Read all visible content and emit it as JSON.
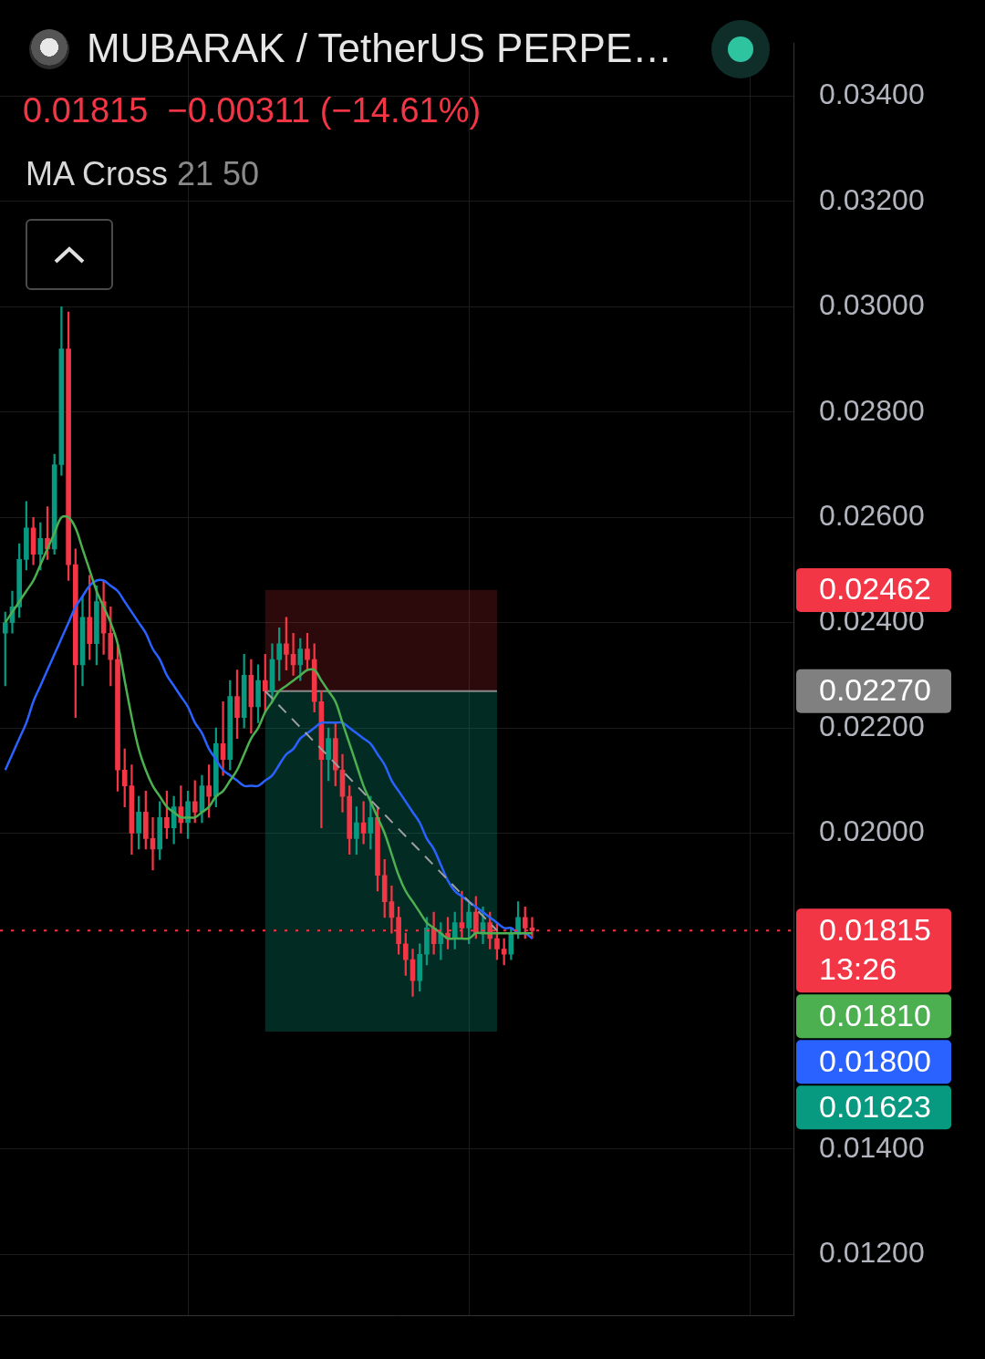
{
  "chart_data": {
    "type": "candlestick",
    "title": "MUBARAK / TetherUS PERPE…",
    "subtitle": "0.01815  −0.00311 (−14.61%)",
    "indicator": {
      "name": "MA Cross",
      "params": "21 50"
    },
    "x": [
      0,
      1,
      2,
      3,
      4,
      5,
      6,
      7,
      8,
      9,
      10,
      11,
      12,
      13,
      14,
      15,
      16,
      17,
      18,
      19,
      20,
      21,
      22,
      23,
      24,
      25,
      26,
      27,
      28,
      29,
      30,
      31,
      32,
      33,
      34,
      35,
      36,
      37,
      38,
      39,
      40,
      41,
      42,
      43,
      44,
      45,
      46,
      47,
      48,
      49,
      50,
      51,
      52,
      53,
      54,
      55,
      56,
      57,
      58,
      59,
      60,
      61,
      62,
      63,
      64,
      65,
      66,
      67,
      68,
      69,
      70,
      71,
      72,
      73,
      74,
      75
    ],
    "candles": {
      "up_color": "#089981",
      "down_color": "#f23645",
      "open": [
        0.0238,
        0.024,
        0.0243,
        0.0252,
        0.0258,
        0.0253,
        0.0256,
        0.0254,
        0.027,
        0.0292,
        0.0251,
        0.0232,
        0.0241,
        0.0236,
        0.0244,
        0.0238,
        0.0233,
        0.0212,
        0.0209,
        0.02,
        0.0204,
        0.0199,
        0.0197,
        0.0203,
        0.0201,
        0.0205,
        0.0202,
        0.0206,
        0.0204,
        0.0209,
        0.0207,
        0.0217,
        0.0214,
        0.0226,
        0.0222,
        0.023,
        0.0224,
        0.0229,
        0.0227,
        0.0233,
        0.0236,
        0.0234,
        0.0232,
        0.0235,
        0.0233,
        0.0225,
        0.0214,
        0.0218,
        0.0212,
        0.0207,
        0.0199,
        0.0202,
        0.02,
        0.0203,
        0.0192,
        0.0187,
        0.0184,
        0.0179,
        0.0176,
        0.0172,
        0.0177,
        0.0182,
        0.0179,
        0.0181,
        0.018,
        0.0183,
        0.0182,
        0.0185,
        0.0181,
        0.0183,
        0.018,
        0.0178,
        0.0177,
        0.0181,
        0.0184,
        0.0182
      ],
      "high": [
        0.0242,
        0.0246,
        0.0255,
        0.0263,
        0.026,
        0.0259,
        0.0262,
        0.0272,
        0.03,
        0.0299,
        0.0254,
        0.0245,
        0.0249,
        0.0247,
        0.0248,
        0.0243,
        0.0236,
        0.0216,
        0.0213,
        0.0207,
        0.0208,
        0.0203,
        0.0206,
        0.0208,
        0.0207,
        0.0209,
        0.0208,
        0.021,
        0.0211,
        0.0213,
        0.022,
        0.0225,
        0.0229,
        0.0231,
        0.0234,
        0.0233,
        0.0232,
        0.0234,
        0.0236,
        0.0239,
        0.0241,
        0.0238,
        0.0237,
        0.0238,
        0.0236,
        0.0227,
        0.022,
        0.0221,
        0.0215,
        0.0209,
        0.0205,
        0.0206,
        0.0207,
        0.0205,
        0.0195,
        0.019,
        0.0186,
        0.0181,
        0.0178,
        0.0179,
        0.0184,
        0.0185,
        0.0183,
        0.0184,
        0.0185,
        0.0189,
        0.0187,
        0.0188,
        0.0186,
        0.0185,
        0.0183,
        0.018,
        0.0182,
        0.0187,
        0.0186,
        0.0184
      ],
      "low": [
        0.0228,
        0.0238,
        0.0241,
        0.025,
        0.0251,
        0.025,
        0.0252,
        0.0253,
        0.0268,
        0.0248,
        0.0222,
        0.0228,
        0.0233,
        0.0232,
        0.0234,
        0.0228,
        0.0208,
        0.0205,
        0.0196,
        0.0197,
        0.0197,
        0.0193,
        0.0195,
        0.0199,
        0.0198,
        0.02,
        0.0199,
        0.0202,
        0.0202,
        0.0203,
        0.0205,
        0.0211,
        0.0212,
        0.0218,
        0.022,
        0.0219,
        0.0221,
        0.0223,
        0.0225,
        0.0229,
        0.0231,
        0.023,
        0.0229,
        0.0231,
        0.0223,
        0.0201,
        0.021,
        0.0209,
        0.0204,
        0.0196,
        0.0196,
        0.0198,
        0.0197,
        0.0189,
        0.0184,
        0.0181,
        0.0177,
        0.0173,
        0.0169,
        0.017,
        0.0175,
        0.0177,
        0.0176,
        0.0178,
        0.0178,
        0.018,
        0.0179,
        0.018,
        0.0179,
        0.0178,
        0.0176,
        0.0175,
        0.0176,
        0.018,
        0.018,
        0.018
      ],
      "close": [
        0.024,
        0.0243,
        0.0252,
        0.0258,
        0.0253,
        0.0256,
        0.0254,
        0.027,
        0.0292,
        0.0251,
        0.0232,
        0.0241,
        0.0236,
        0.0244,
        0.0238,
        0.0233,
        0.0212,
        0.0209,
        0.02,
        0.0204,
        0.0199,
        0.0197,
        0.0203,
        0.0201,
        0.0205,
        0.0202,
        0.0206,
        0.0204,
        0.0209,
        0.0207,
        0.0217,
        0.0214,
        0.0226,
        0.0222,
        0.023,
        0.0224,
        0.0229,
        0.0227,
        0.0233,
        0.0236,
        0.0234,
        0.0232,
        0.0235,
        0.0233,
        0.0225,
        0.0214,
        0.0218,
        0.0212,
        0.0207,
        0.0199,
        0.0202,
        0.02,
        0.0203,
        0.0192,
        0.0187,
        0.0184,
        0.0179,
        0.0176,
        0.0172,
        0.0177,
        0.0182,
        0.0179,
        0.0181,
        0.018,
        0.0183,
        0.0182,
        0.0185,
        0.0181,
        0.0183,
        0.018,
        0.0178,
        0.0177,
        0.0181,
        0.0184,
        0.0182,
        0.01815
      ]
    },
    "series": [
      {
        "type": "line",
        "color": "#4caf50",
        "line_style": "solid",
        "values": [
          0.024,
          0.0242,
          0.0244,
          0.0246,
          0.0248,
          0.0251,
          0.0254,
          0.0257,
          0.026,
          0.026,
          0.0258,
          0.0254,
          0.025,
          0.0246,
          0.0243,
          0.024,
          0.0236,
          0.0229,
          0.0222,
          0.0216,
          0.0212,
          0.0209,
          0.0207,
          0.0205,
          0.0204,
          0.0203,
          0.0203,
          0.0203,
          0.0204,
          0.0205,
          0.0207,
          0.0208,
          0.021,
          0.0212,
          0.0215,
          0.0218,
          0.022,
          0.0223,
          0.0225,
          0.0227,
          0.0228,
          0.0229,
          0.023,
          0.0231,
          0.0231,
          0.0229,
          0.0227,
          0.0225,
          0.0221,
          0.0217,
          0.0213,
          0.0209,
          0.0206,
          0.0203,
          0.02,
          0.0196,
          0.0192,
          0.0189,
          0.0187,
          0.0185,
          0.0183,
          0.0182,
          0.0181,
          0.018,
          0.018,
          0.018,
          0.018,
          0.0181,
          0.0181,
          0.0181,
          0.0181,
          0.0181,
          0.0181,
          0.0181,
          0.0181,
          0.0181
        ]
      },
      {
        "type": "line",
        "color": "#2962ff",
        "line_style": "solid",
        "values": [
          0.0212,
          0.0215,
          0.0218,
          0.0221,
          0.0225,
          0.0228,
          0.0231,
          0.0234,
          0.0237,
          0.024,
          0.0243,
          0.0245,
          0.0247,
          0.0248,
          0.0248,
          0.0247,
          0.0246,
          0.0244,
          0.0242,
          0.024,
          0.0238,
          0.0235,
          0.0233,
          0.023,
          0.0228,
          0.0226,
          0.0224,
          0.0221,
          0.0219,
          0.0216,
          0.0214,
          0.0212,
          0.0211,
          0.021,
          0.0209,
          0.0209,
          0.0209,
          0.021,
          0.0211,
          0.0213,
          0.0215,
          0.0216,
          0.0218,
          0.0219,
          0.022,
          0.0221,
          0.0221,
          0.0221,
          0.0221,
          0.022,
          0.0219,
          0.0218,
          0.0217,
          0.0215,
          0.0213,
          0.021,
          0.0208,
          0.0206,
          0.0204,
          0.0202,
          0.0199,
          0.0197,
          0.0194,
          0.0191,
          0.0189,
          0.0188,
          0.0187,
          0.0186,
          0.0185,
          0.0184,
          0.0183,
          0.0182,
          0.0182,
          0.0181,
          0.0181,
          0.018
        ]
      }
    ],
    "position": {
      "entry": 0.0227,
      "stop": 0.02462,
      "target": 0.01623,
      "x_start": 37,
      "x_end": 70
    },
    "last_price": 0.01815,
    "price_labels": [
      {
        "value": 0.02462,
        "label": "0.02462",
        "color": "#f23645"
      },
      {
        "value": 0.0227,
        "label": "0.02270",
        "color": "#808080"
      },
      {
        "value": 0.01815,
        "label": "0.01815",
        "color": "#f23645",
        "countdown": "13:26"
      },
      {
        "value": 0.0181,
        "label": "0.01810",
        "color": "#4caf50"
      },
      {
        "value": 0.018,
        "label": "0.01800",
        "color": "#2962ff"
      },
      {
        "value": 0.01623,
        "label": "0.01623",
        "color": "#089981"
      }
    ],
    "xlim": [
      -0.75,
      112.2
    ],
    "xticks": [
      6,
      46,
      86
    ],
    "ylim": [
      0.01083,
      0.03501
    ],
    "yticks": [
      {
        "value": 0.012,
        "label": "0.01200"
      },
      {
        "value": 0.014,
        "label": "0.01400"
      },
      {
        "value": 0.02,
        "label": "0.02000"
      },
      {
        "value": 0.022,
        "label": "0.02200"
      },
      {
        "value": 0.024,
        "label": "0.02400"
      },
      {
        "value": 0.026,
        "label": "0.02600"
      },
      {
        "value": 0.028,
        "label": "0.02800"
      },
      {
        "value": 0.03,
        "label": "0.03000"
      },
      {
        "value": 0.032,
        "label": "0.03200"
      },
      {
        "value": 0.034,
        "label": "0.03400"
      }
    ],
    "grid": true,
    "tick_labels": "y"
  }
}
